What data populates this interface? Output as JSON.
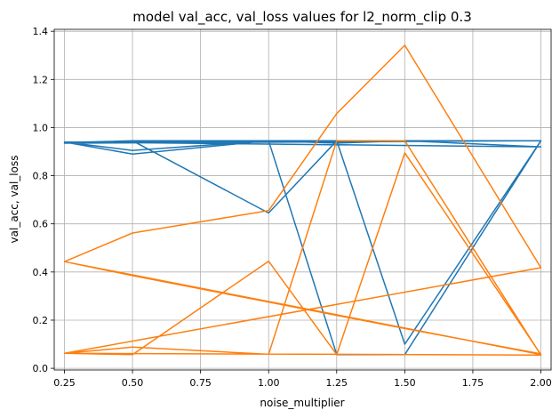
{
  "chart_data": {
    "type": "line",
    "title": "model val_acc, val_loss values for l2_norm_clip 0.3",
    "xlabel": "noise_multiplier",
    "ylabel": "val_acc, val_loss",
    "xlim": [
      0.2125,
      2.0375
    ],
    "ylim": [
      -0.007,
      1.408
    ],
    "xticks": [
      0.25,
      0.5,
      0.75,
      1.0,
      1.25,
      1.5,
      1.75,
      2.0
    ],
    "xtick_labels": [
      "0.25",
      "0.50",
      "0.75",
      "1.00",
      "1.25",
      "1.50",
      "1.75",
      "2.00"
    ],
    "yticks": [
      0.0,
      0.2,
      0.4,
      0.6,
      0.8,
      1.0,
      1.2,
      1.4
    ],
    "ytick_labels": [
      "0.0",
      "0.2",
      "0.4",
      "0.6",
      "0.8",
      "1.0",
      "1.2",
      "1.4"
    ],
    "grid": true,
    "series": [
      {
        "color": "#1f77b4",
        "x": [
          0.25,
          0.5,
          1.0,
          1.25,
          1.5,
          2.0,
          0.25,
          0.5,
          1.0,
          1.25,
          1.5,
          2.0,
          0.25,
          0.5,
          1.0,
          1.25,
          1.5,
          2.0,
          0.25,
          0.5,
          1.0,
          1.25,
          1.5,
          2.0
        ],
        "y": [
          0.938,
          0.945,
          0.645,
          0.945,
          0.945,
          0.92,
          0.94,
          0.89,
          0.945,
          0.057,
          0.057,
          0.945,
          0.935,
          0.945,
          0.945,
          0.935,
          0.945,
          0.945,
          0.94,
          0.905,
          0.945,
          0.945,
          0.1,
          0.945
        ]
      },
      {
        "color": "#ff7f0e",
        "x": [
          0.25,
          0.5,
          1.0,
          1.25,
          1.5,
          2.0,
          0.25,
          0.5,
          1.0,
          1.25,
          1.5,
          2.0,
          0.25,
          0.5,
          1.0,
          1.25,
          1.5,
          2.0,
          0.25,
          0.5,
          1.0,
          1.25,
          1.5,
          2.0
        ],
        "y": [
          0.443,
          0.562,
          0.655,
          1.058,
          1.342,
          0.418,
          0.062,
          0.088,
          0.058,
          0.945,
          0.945,
          0.055,
          0.062,
          0.057,
          0.445,
          0.057,
          0.895,
          0.057,
          0.443,
          0.385,
          0.275,
          0.22,
          0.165,
          0.06
        ]
      }
    ]
  }
}
